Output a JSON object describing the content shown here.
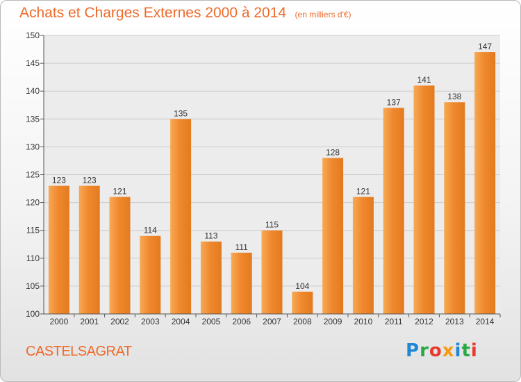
{
  "chart_data": {
    "type": "bar",
    "title": "Achats et Charges Externes 2000 à 2014",
    "subtitle": "(en milliers d'€)",
    "categories": [
      "2000",
      "2001",
      "2002",
      "2003",
      "2004",
      "2005",
      "2006",
      "2007",
      "2008",
      "2009",
      "2010",
      "2011",
      "2012",
      "2013",
      "2014"
    ],
    "values": [
      123,
      123,
      121,
      114,
      135,
      113,
      111,
      115,
      104,
      128,
      121,
      137,
      141,
      138,
      147
    ],
    "ylim": [
      100,
      150
    ],
    "yticks": [
      100,
      105,
      110,
      115,
      120,
      125,
      130,
      135,
      140,
      145,
      150
    ],
    "xlabel": "",
    "ylabel": "",
    "grid": true,
    "legend": "none",
    "bar_color": "#f0892e",
    "bar_color_light": "#f7a955",
    "bar_color_dark": "#e37a1f"
  },
  "place": "CASTELSAGRAT",
  "logo": {
    "letters": [
      "P",
      "r",
      "o",
      "x",
      "i",
      "t",
      "i"
    ],
    "colors": [
      "#1e88d6",
      "#2aa845",
      "#e63a2e",
      "#f39c12",
      "#1e88d6",
      "#2aa845",
      "#e63a2e"
    ]
  }
}
